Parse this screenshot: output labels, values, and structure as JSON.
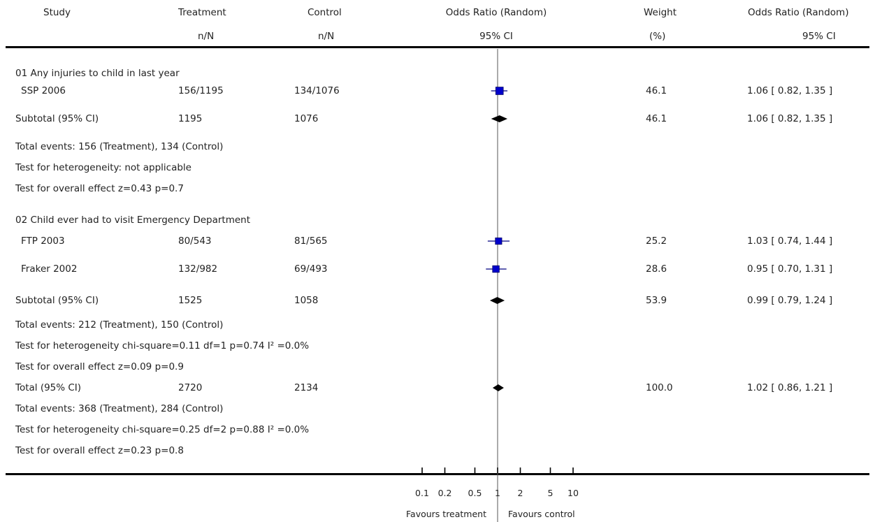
{
  "header": {
    "study": "Study",
    "treatment": "Treatment",
    "treatment_sub": "n/N",
    "control": "Control",
    "control_sub": "n/N",
    "or_plot": "Odds Ratio (Random)",
    "or_plot_sub": "95% CI",
    "weight": "Weight",
    "weight_sub": "(%)",
    "or_text": "Odds Ratio (Random)",
    "or_text_sub": "95% CI"
  },
  "rows": [
    {
      "kind": "group",
      "label": "01 Any injuries to child in last year"
    },
    {
      "kind": "study",
      "study": "SSP 2006",
      "treatment": "156/1195",
      "control": "134/1076",
      "weight": "46.1",
      "ci_text": "1.06 [ 0.82, 1.35 ]"
    },
    {
      "kind": "subtotal",
      "study": "Subtotal (95% CI)",
      "treatment": "1195",
      "control": "1076",
      "weight": "46.1",
      "ci_text": "1.06 [ 0.82, 1.35 ]"
    },
    {
      "kind": "note",
      "label": "Total events: 156 (Treatment), 134 (Control)"
    },
    {
      "kind": "note",
      "label": "Test for heterogeneity: not applicable"
    },
    {
      "kind": "note",
      "label": "Test for overall effect z=0.43    p=0.7"
    },
    {
      "kind": "group",
      "label": "02 Child ever had to visit Emergency Department"
    },
    {
      "kind": "study",
      "study": "FTP 2003",
      "treatment": "80/543",
      "control": "81/565",
      "weight": "25.2",
      "ci_text": "1.03 [ 0.74, 1.44 ]"
    },
    {
      "kind": "study",
      "study": "Fraker 2002",
      "treatment": "132/982",
      "control": "69/493",
      "weight": "28.6",
      "ci_text": "0.95 [ 0.70, 1.31 ]"
    },
    {
      "kind": "subtotal",
      "study": "Subtotal (95% CI)",
      "treatment": "1525",
      "control": "1058",
      "weight": "53.9",
      "ci_text": "0.99 [ 0.79, 1.24 ]"
    },
    {
      "kind": "note",
      "label": "Total events: 212 (Treatment), 150 (Control)"
    },
    {
      "kind": "note",
      "label": "Test for heterogeneity chi-square=0.11 df=1 p=0.74 I² =0.0%"
    },
    {
      "kind": "note",
      "label": "Test for overall effect z=0.09    p=0.9"
    },
    {
      "kind": "total",
      "study": "Total (95% CI)",
      "treatment": "2720",
      "control": "2134",
      "weight": "100.0",
      "ci_text": "1.02 [ 0.86, 1.21 ]"
    },
    {
      "kind": "note",
      "label": "Total events: 368 (Treatment), 284 (Control)"
    },
    {
      "kind": "note",
      "label": "Test for heterogeneity chi-square=0.25 df=2 p=0.88 I² =0.0%"
    },
    {
      "kind": "note",
      "label": "Test for overall effect z=0.23    p=0.8"
    }
  ],
  "axis": {
    "favours_left": "Favours treatment",
    "favours_right": "Favours control"
  },
  "chart_data": {
    "type": "scatter",
    "subtype": "forest-plot",
    "scale": "log",
    "xlim": [
      0.1,
      10
    ],
    "reference_line": 1,
    "ticks": [
      {
        "value": 0.1,
        "label": "0.1"
      },
      {
        "value": 0.2,
        "label": "0.2"
      },
      {
        "value": 0.5,
        "label": "0.5"
      },
      {
        "value": 1,
        "label": "1"
      },
      {
        "value": 2,
        "label": "2"
      },
      {
        "value": 5,
        "label": "5"
      },
      {
        "value": 10,
        "label": "10"
      }
    ],
    "estimates": [
      {
        "row": 1,
        "kind": "study",
        "or": 1.06,
        "lo": 0.82,
        "hi": 1.35,
        "weight": 46.1
      },
      {
        "row": 2,
        "kind": "pooled",
        "or": 1.06,
        "lo": 0.82,
        "hi": 1.35
      },
      {
        "row": 7,
        "kind": "study",
        "or": 1.03,
        "lo": 0.74,
        "hi": 1.44,
        "weight": 25.2
      },
      {
        "row": 8,
        "kind": "study",
        "or": 0.95,
        "lo": 0.7,
        "hi": 1.31,
        "weight": 28.6
      },
      {
        "row": 9,
        "kind": "pooled",
        "or": 0.99,
        "lo": 0.79,
        "hi": 1.24
      },
      {
        "row": 13,
        "kind": "pooled",
        "or": 1.02,
        "lo": 0.86,
        "hi": 1.21
      }
    ],
    "colors": {
      "marker": "#0000cc",
      "diamond": "#000000",
      "line": "#000000",
      "reference": "#555555"
    }
  }
}
